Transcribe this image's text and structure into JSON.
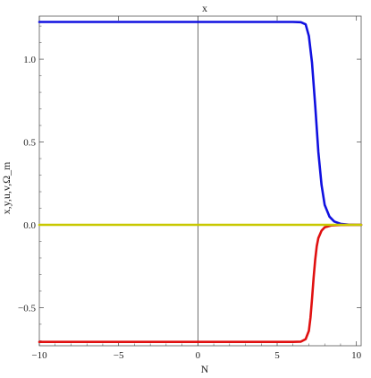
{
  "chart_data": {
    "type": "line",
    "title": "x",
    "xlabel": "N",
    "ylabel": "x,y,u,v,Ω_m",
    "xlim": [
      -10,
      10.3
    ],
    "ylim": [
      -0.73,
      1.26
    ],
    "grid": false,
    "x_ticks": [
      -10,
      -5,
      0,
      5,
      10
    ],
    "x_tick_labels": [
      "−10",
      "−5",
      "0",
      "5",
      "10"
    ],
    "y_ticks": [
      -0.5,
      0.0,
      0.5,
      1.0
    ],
    "y_tick_labels": [
      "−0.5",
      "0.0",
      "0.5",
      "1.0"
    ],
    "series": [
      {
        "color": "#1010e0",
        "x": [
          -10,
          6.0,
          6.5,
          6.8,
          7.0,
          7.2,
          7.4,
          7.6,
          7.8,
          8.0,
          8.3,
          8.6,
          9.0,
          9.5,
          10.0,
          10.3
        ],
        "values": [
          1.225,
          1.225,
          1.223,
          1.21,
          1.14,
          0.98,
          0.72,
          0.44,
          0.24,
          0.12,
          0.05,
          0.02,
          0.006,
          0.001,
          0.0,
          0.0
        ]
      },
      {
        "color": "#e01010",
        "x": [
          -10,
          6.0,
          6.5,
          6.8,
          7.0,
          7.1,
          7.2,
          7.3,
          7.4,
          7.5,
          7.6,
          7.8,
          8.0,
          8.4,
          9.0,
          10.0,
          10.3
        ],
        "values": [
          -0.707,
          -0.707,
          -0.705,
          -0.69,
          -0.64,
          -0.56,
          -0.45,
          -0.32,
          -0.21,
          -0.13,
          -0.08,
          -0.035,
          -0.015,
          -0.004,
          -0.001,
          0.0,
          0.0
        ]
      },
      {
        "color": "#c8c800",
        "x": [
          -10,
          10.3
        ],
        "values": [
          0.0,
          0.0
        ]
      }
    ]
  }
}
